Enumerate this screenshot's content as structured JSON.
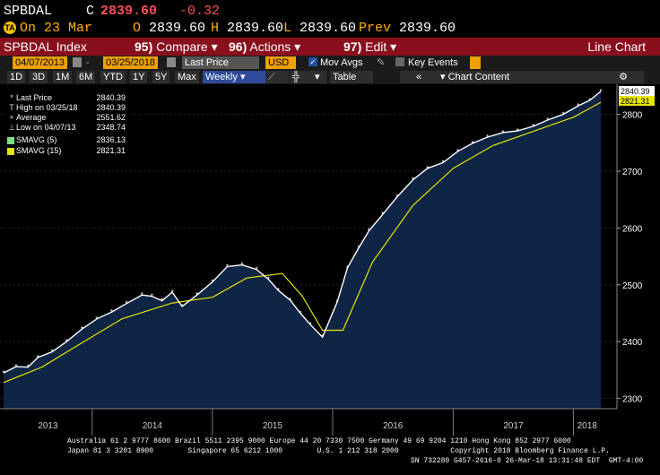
{
  "header": {
    "ticker": "SPBDAL",
    "last_label": "C",
    "last": "2839.60",
    "change": "-0.32",
    "date_icon": "TA",
    "on_date": "On 23 Mar",
    "open_label": "O",
    "open": "2839.60",
    "high_label": "H",
    "high": "2839.60",
    "low_label": "L",
    "low": "2839.60",
    "prev_label": "Prev",
    "prev": "2839.60"
  },
  "menubar": {
    "index": "SPBDAL Index",
    "compare_num": "95)",
    "compare": "Compare",
    "actions_num": "96)",
    "actions": "Actions",
    "edit_num": "97)",
    "edit": "Edit",
    "view": "Line Chart"
  },
  "controls": {
    "start_date": "04/07/2013",
    "end_date": "03/25/2018",
    "field": "Last Price",
    "currency": "USD",
    "mov_avgs": "Mov Avgs",
    "key_events": "Key Events"
  },
  "periods": {
    "items": [
      "1D",
      "3D",
      "1M",
      "6M",
      "YTD",
      "1Y",
      "5Y",
      "Max"
    ],
    "frequency": "Weekly",
    "table": "Table",
    "chart_content": "Chart Content"
  },
  "legend": {
    "rows": [
      {
        "label": "Last Price",
        "value": "2840.39",
        "sym": "*"
      },
      {
        "label": "High on 03/25/18",
        "value": "2840.39",
        "sym": "T"
      },
      {
        "label": "Average",
        "value": "2551.62",
        "sym": "+"
      },
      {
        "label": "Low on 04/07/13",
        "value": "2348.74",
        "sym": "⊥"
      },
      {
        "label": "SMAVG (5)",
        "value": "2836.13",
        "sym": ""
      },
      {
        "label": "SMAVG (15)",
        "value": "2821.31",
        "sym": ""
      }
    ]
  },
  "footer": {
    "line1": "Australia 61 2 9777 8600 Brazil 5511 2395 9000 Europe 44 20 7330 7500 Germany 49 69 9204 1210 Hong Kong 852 2977 6000",
    "line2": "Japan 81 3 3201 8900        Singapore 65 6212 1000        U.S. 1 212 318 2000            Copyright 2018 Bloomberg Finance L.P.",
    "line3": "SN 732280 G457-2616-0 26-Mar-18 13:31:48 EDT  GMT-4:00"
  },
  "chart_data": {
    "type": "area",
    "xlabels": [
      "2013",
      "2014",
      "2015",
      "2016",
      "2017",
      "2018"
    ],
    "yticks": [
      2300,
      2400,
      2500,
      2600,
      2700,
      2800
    ],
    "ylim": [
      2282,
      2853
    ],
    "x_range": [
      "2013-04-07",
      "2018-03-25"
    ],
    "last_label": "2840.39",
    "sma15_label": "2821.31",
    "colors": {
      "price": "#ffffff",
      "sma5": "#7fe08a",
      "sma15": "#e6e600",
      "fill": "#0f2545"
    },
    "series": [
      {
        "name": "Last Price",
        "x": [
          "2013-04-07",
          "2013-05-15",
          "2013-06-20",
          "2013-07-20",
          "2013-09-01",
          "2013-10-15",
          "2013-12-01",
          "2014-01-15",
          "2014-03-01",
          "2014-04-15",
          "2014-06-01",
          "2014-07-01",
          "2014-08-01",
          "2014-09-01",
          "2014-10-01",
          "2014-11-15",
          "2015-01-01",
          "2015-02-15",
          "2015-04-01",
          "2015-05-15",
          "2015-06-20",
          "2015-07-20",
          "2015-08-25",
          "2015-09-25",
          "2015-10-25",
          "2015-12-01",
          "2016-01-15",
          "2016-02-15",
          "2016-03-20",
          "2016-04-20",
          "2016-06-01",
          "2016-07-15",
          "2016-09-01",
          "2016-10-15",
          "2016-12-01",
          "2017-01-15",
          "2017-03-01",
          "2017-04-15",
          "2017-06-01",
          "2017-07-15",
          "2017-09-01",
          "2017-10-15",
          "2017-12-01",
          "2018-01-15",
          "2018-02-20",
          "2018-03-25"
        ],
        "values": [
          2345,
          2356,
          2355,
          2372,
          2382,
          2400,
          2422,
          2440,
          2452,
          2467,
          2482,
          2480,
          2472,
          2487,
          2462,
          2482,
          2505,
          2532,
          2535,
          2527,
          2510,
          2490,
          2473,
          2450,
          2430,
          2408,
          2470,
          2530,
          2565,
          2595,
          2624,
          2655,
          2685,
          2705,
          2715,
          2735,
          2749,
          2760,
          2768,
          2771,
          2779,
          2790,
          2800,
          2815,
          2825,
          2840.39
        ]
      },
      {
        "name": "SMAVG (15)",
        "x": [
          "2013-04-07",
          "2013-08-01",
          "2013-12-01",
          "2014-04-01",
          "2014-09-01",
          "2015-01-01",
          "2015-04-15",
          "2015-08-01",
          "2015-10-01",
          "2015-12-01",
          "2016-02-01",
          "2016-05-01",
          "2016-09-01",
          "2017-01-01",
          "2017-05-01",
          "2017-09-01",
          "2018-01-01",
          "2018-03-25"
        ],
        "values": [
          2328,
          2355,
          2398,
          2440,
          2468,
          2478,
          2512,
          2520,
          2480,
          2420,
          2420,
          2540,
          2640,
          2705,
          2745,
          2770,
          2795,
          2821.31
        ]
      }
    ]
  }
}
